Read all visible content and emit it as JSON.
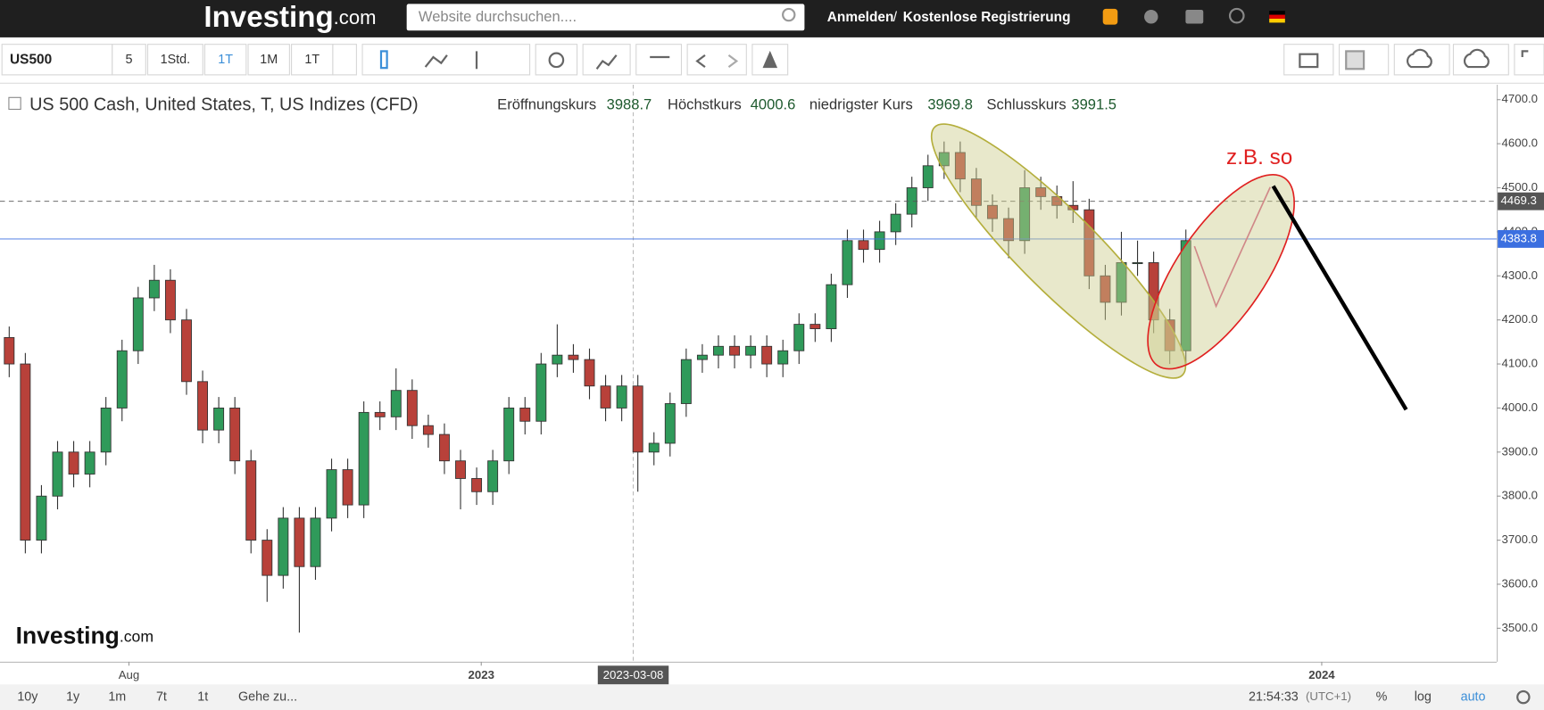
{
  "header": {
    "logo_main": "Investing",
    "logo_suffix": ".com",
    "search_placeholder": "Website durchsuchen....",
    "login": "Anmelden",
    "separator": "/",
    "register": "Kostenlose Registrierung"
  },
  "toolbar": {
    "symbol": "US500",
    "intervals": [
      "5",
      "1Std.",
      "1T",
      "1M",
      "1T"
    ]
  },
  "chart_data": {
    "type": "candlestick",
    "title": "US 500 Cash, United States, T, US Indizes (CFD)",
    "ohlc_legend": [
      {
        "label": "Eröffnungskurs",
        "value": 3988.7
      },
      {
        "label": "Höchstkurs",
        "value": 4000.6
      },
      {
        "label": "niedrigster Kurs",
        "value": 3969.8
      },
      {
        "label": "Schlusskurs",
        "value": 3991.5
      }
    ],
    "annotation": "z.B. so",
    "watermark_main": "Investing",
    "watermark_suffix": ".com",
    "up_color": "#2f9a5a",
    "down_color": "#b8413a",
    "x": [
      "2022-06-10",
      "2022-06-17",
      "2022-06-24",
      "2022-07-01",
      "2022-07-08",
      "2022-07-15",
      "2022-07-22",
      "2022-07-29",
      "2022-08-05",
      "2022-08-12",
      "2022-08-19",
      "2022-08-26",
      "2022-09-02",
      "2022-09-09",
      "2022-09-16",
      "2022-09-23",
      "2022-09-30",
      "2022-10-07",
      "2022-10-14",
      "2022-10-21",
      "2022-10-28",
      "2022-11-04",
      "2022-11-11",
      "2022-11-18",
      "2022-11-25",
      "2022-12-02",
      "2022-12-09",
      "2022-12-16",
      "2022-12-23",
      "2022-12-30",
      "2023-01-06",
      "2023-01-13",
      "2023-01-20",
      "2023-01-27",
      "2023-02-03",
      "2023-02-10",
      "2023-02-17",
      "2023-02-24",
      "2023-03-03",
      "2023-03-10",
      "2023-03-17",
      "2023-03-24",
      "2023-03-31",
      "2023-04-07",
      "2023-04-14",
      "2023-04-21",
      "2023-04-28",
      "2023-05-05",
      "2023-05-12",
      "2023-05-19",
      "2023-05-26",
      "2023-06-02",
      "2023-06-09",
      "2023-06-16",
      "2023-06-23",
      "2023-06-30",
      "2023-07-07",
      "2023-07-14",
      "2023-07-21",
      "2023-07-28",
      "2023-08-04",
      "2023-08-11",
      "2023-08-18",
      "2023-08-25",
      "2023-09-01",
      "2023-09-08",
      "2023-09-15",
      "2023-09-22",
      "2023-09-29",
      "2023-10-06",
      "2023-10-13",
      "2023-10-20",
      "2023-10-27",
      "2023-11-03"
    ],
    "open": [
      4160,
      4100,
      3700,
      3800,
      3900,
      3850,
      3900,
      4000,
      4130,
      4250,
      4290,
      4200,
      4060,
      3950,
      4000,
      3880,
      3700,
      3620,
      3750,
      3640,
      3750,
      3860,
      3780,
      3990,
      3980,
      4040,
      3960,
      3940,
      3880,
      3840,
      3810,
      3880,
      4000,
      3970,
      4100,
      4120,
      4110,
      4050,
      4000,
      4050,
      3900,
      3920,
      4010,
      4110,
      4120,
      4140,
      4120,
      4140,
      4100,
      4130,
      4190,
      4180,
      4280,
      4380,
      4360,
      4400,
      4440,
      4500,
      4550,
      4580,
      4520,
      4460,
      4430,
      4380,
      4500,
      4480,
      4460,
      4450,
      4300,
      4240,
      4330,
      4330,
      4200,
      4130
    ],
    "high": [
      4185,
      4125,
      3825,
      3925,
      3925,
      3925,
      4025,
      4155,
      4275,
      4325,
      4315,
      4225,
      4085,
      4025,
      4025,
      3905,
      3725,
      3775,
      3775,
      3775,
      3885,
      3885,
      4015,
      4015,
      4090,
      4065,
      3985,
      3965,
      3905,
      3865,
      3905,
      4025,
      4025,
      4125,
      4190,
      4145,
      4135,
      4075,
      4075,
      4075,
      3945,
      4035,
      4135,
      4145,
      4165,
      4165,
      4165,
      4165,
      4155,
      4215,
      4215,
      4305,
      4405,
      4405,
      4425,
      4465,
      4525,
      4575,
      4605,
      4605,
      4545,
      4485,
      4455,
      4540,
      4525,
      4505,
      4515,
      4475,
      4325,
      4400,
      4380,
      4355,
      4225,
      4405
    ],
    "low": [
      4070,
      3670,
      3670,
      3770,
      3820,
      3820,
      3870,
      3970,
      4100,
      4220,
      4170,
      4030,
      3920,
      3920,
      3850,
      3670,
      3560,
      3590,
      3490,
      3610,
      3720,
      3750,
      3750,
      3950,
      3950,
      3930,
      3910,
      3850,
      3770,
      3780,
      3780,
      3850,
      3940,
      3940,
      4070,
      4080,
      4020,
      3970,
      3970,
      3810,
      3870,
      3890,
      3980,
      4080,
      4090,
      4090,
      4090,
      4070,
      4070,
      4100,
      4150,
      4150,
      4250,
      4330,
      4330,
      4370,
      4410,
      4470,
      4520,
      4490,
      4430,
      4400,
      4340,
      4350,
      4450,
      4430,
      4420,
      4270,
      4200,
      4210,
      4300,
      4170,
      4100,
      4100
    ],
    "close": [
      4100,
      3700,
      3800,
      3900,
      3850,
      3900,
      4000,
      4130,
      4250,
      4290,
      4200,
      4060,
      3950,
      4000,
      3880,
      3700,
      3620,
      3750,
      3640,
      3750,
      3860,
      3780,
      3990,
      3980,
      4040,
      3960,
      3940,
      3880,
      3840,
      3810,
      3880,
      4000,
      3970,
      4100,
      4120,
      4110,
      4050,
      4000,
      4050,
      3900,
      3920,
      4010,
      4110,
      4120,
      4140,
      4120,
      4140,
      4100,
      4130,
      4190,
      4180,
      4280,
      4380,
      4360,
      4400,
      4440,
      4500,
      4550,
      4580,
      4520,
      4460,
      4430,
      4380,
      4500,
      4480,
      4460,
      4450,
      4300,
      4240,
      4330,
      4330,
      4200,
      4130,
      4380
    ],
    "xlim": [
      "2022-06-06",
      "2024-03-17"
    ],
    "xticks": [
      {
        "value": "2022-08-01",
        "label": "Aug"
      },
      {
        "value": "2023-01-01",
        "label": "2023"
      },
      {
        "value": "2024-01-01",
        "label": "2024"
      }
    ],
    "crosshair": "2023-03-08",
    "ylim": [
      3424,
      4734
    ],
    "yticks": [
      {
        "value": 3500,
        "label": "3500.0"
      },
      {
        "value": 3600,
        "label": "3600.0"
      },
      {
        "value": 3700,
        "label": "3700.0"
      },
      {
        "value": 3800,
        "label": "3800.0"
      },
      {
        "value": 3900,
        "label": "3900.0"
      },
      {
        "value": 4000,
        "label": "4000.0"
      },
      {
        "value": 4100,
        "label": "4100.0"
      },
      {
        "value": 4200,
        "label": "4200.0"
      },
      {
        "value": 4300,
        "label": "4300.0"
      },
      {
        "value": 4400,
        "label": "4400.0"
      },
      {
        "value": 4500,
        "label": "4500.0"
      },
      {
        "value": 4600,
        "label": "4600.0"
      },
      {
        "value": 4700,
        "label": "4700.0"
      }
    ],
    "price_lines": [
      {
        "value": 4469.3,
        "color": "#555555"
      },
      {
        "value": 4383.8,
        "color": "#3b6fe0"
      }
    ]
  },
  "footer": {
    "ranges": [
      "10y",
      "1y",
      "1m",
      "7t",
      "1t"
    ],
    "goto": "Gehe zu...",
    "time": "21:54:33",
    "timezone": "(UTC+1)",
    "options": [
      "%",
      "log",
      "auto"
    ]
  }
}
